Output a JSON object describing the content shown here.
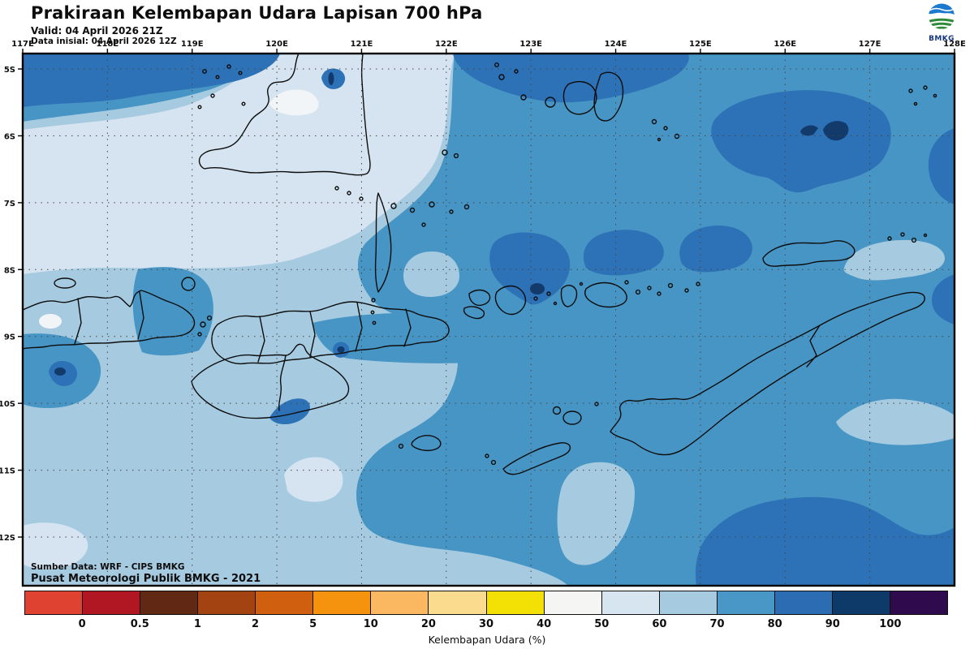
{
  "header": {
    "title": "Prakiraan Kelembapan Udara Lapisan 700 hPa",
    "valid_line": "Valid: 04 April 2026 21Z",
    "init_line": "Data inisial: 04 April 2026 12Z",
    "logo_text": "BMKG"
  },
  "map": {
    "lon_labels": [
      "117E",
      "118E",
      "119E",
      "120E",
      "121E",
      "122E",
      "123E",
      "124E",
      "125E",
      "126E",
      "127E",
      "128E"
    ],
    "lat_labels": [
      "5S",
      "6S",
      "7S",
      "8S",
      "9S",
      "10S",
      "11S",
      "12S"
    ],
    "source_line1": "Sumber Data: WRF - CIPS BMKG",
    "source_line2": "Pusat Meteorologi Publik BMKG - 2021",
    "region_colors": {
      "humidity_40_50": "#f2f5f7",
      "humidity_50_60": "#d5e4f0",
      "humidity_60_70": "#a6cbe1",
      "humidity_70_80": "#4795c5",
      "humidity_80_90": "#2d71b6",
      "humidity_90_100": "#123a6b",
      "coastline": "#0d0d0d"
    }
  },
  "legend": {
    "caption": "Kelembapan Udara (%)",
    "tick_labels": [
      "0",
      "0.5",
      "1",
      "2",
      "5",
      "10",
      "20",
      "30",
      "40",
      "50",
      "60",
      "70",
      "80",
      "90",
      "100"
    ],
    "cell_colors": [
      "#e04232",
      "#b11623",
      "#612813",
      "#a44312",
      "#d05f10",
      "#f5930f",
      "#fbb860",
      "#fbdc8e",
      "#f3e004",
      "#f5f5f3",
      "#d6e5f0",
      "#a6cbe0",
      "#4897c6",
      "#2b6cb3",
      "#0d3a68",
      "#2f0a4d"
    ]
  },
  "chart_data": {
    "type": "heatmap",
    "title": "Prakiraan Kelembapan Udara Lapisan 700 hPa",
    "valid_time": "04 April 2026 21Z",
    "initial_time": "04 April 2026 12Z",
    "variable": "Kelembapan Udara (%)",
    "model": "WRF - CIPS BMKG",
    "lon_ticks": [
      "117E",
      "118E",
      "119E",
      "120E",
      "121E",
      "122E",
      "123E",
      "124E",
      "125E",
      "126E",
      "127E",
      "128E"
    ],
    "lat_ticks": [
      "5S",
      "6S",
      "7S",
      "8S",
      "9S",
      "10S",
      "11S",
      "12S"
    ],
    "scale_breaks": [
      0,
      0.5,
      1,
      2,
      5,
      10,
      20,
      30,
      40,
      50,
      60,
      70,
      80,
      90,
      100
    ],
    "field_summary": "Humidity 60-80% over most of domain; 80-90% bands along northern edge, NE quadrant, over Lombok-Sumbawa and SE corner; small 90-100% cores; 40-60% pockets west-center and near South Sulawesi"
  }
}
